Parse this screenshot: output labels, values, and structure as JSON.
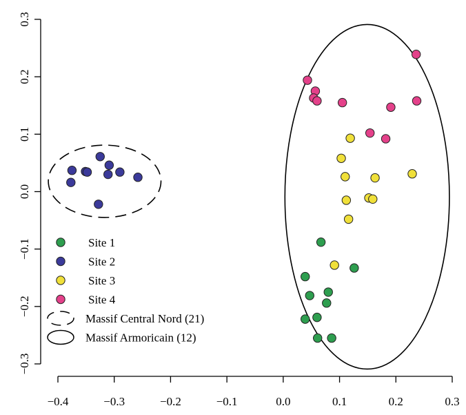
{
  "chart_data": {
    "type": "scatter",
    "title": "",
    "xlabel": "",
    "ylabel": "",
    "xlim": [
      -0.4,
      0.3
    ],
    "ylim": [
      -0.3,
      0.3
    ],
    "x_ticks": [
      -0.4,
      -0.3,
      -0.2,
      -0.1,
      0.0,
      0.1,
      0.2,
      0.3
    ],
    "x_tick_labels": [
      "−0.4",
      "−0.3",
      "−0.2",
      "−0.1",
      "0.0",
      "0.1",
      "0.2",
      "0.3"
    ],
    "y_ticks": [
      -0.3,
      -0.2,
      -0.1,
      0.0,
      0.1,
      0.2,
      0.3
    ],
    "y_tick_labels": [
      "−0.3",
      "−0.2",
      "−0.1",
      "0.0",
      "0.1",
      "0.2",
      "0.3"
    ],
    "grid": false,
    "legend_position": "bottom-left",
    "series": [
      {
        "name": "Site 1",
        "color": "#2e9e4f",
        "points": [
          [
            0.067,
            -0.088
          ],
          [
            0.126,
            -0.133
          ],
          [
            0.039,
            -0.148
          ],
          [
            0.047,
            -0.181
          ],
          [
            0.08,
            -0.175
          ],
          [
            0.077,
            -0.194
          ],
          [
            0.039,
            -0.222
          ],
          [
            0.06,
            -0.219
          ],
          [
            0.061,
            -0.255
          ],
          [
            0.086,
            -0.255
          ]
        ]
      },
      {
        "name": "Site 2",
        "color": "#3b3a9a",
        "points": [
          [
            -0.325,
            0.061
          ],
          [
            -0.309,
            0.046
          ],
          [
            -0.375,
            0.037
          ],
          [
            -0.351,
            0.035
          ],
          [
            -0.348,
            0.034
          ],
          [
            -0.29,
            0.034
          ],
          [
            -0.311,
            0.03
          ],
          [
            -0.258,
            0.025
          ],
          [
            -0.377,
            0.016
          ],
          [
            -0.328,
            -0.022
          ]
        ]
      },
      {
        "name": "Site 3",
        "color": "#f0e03a",
        "points": [
          [
            0.119,
            0.093
          ],
          [
            0.103,
            0.058
          ],
          [
            0.229,
            0.031
          ],
          [
            0.11,
            0.026
          ],
          [
            0.163,
            0.024
          ],
          [
            0.152,
            -0.011
          ],
          [
            0.159,
            -0.013
          ],
          [
            0.112,
            -0.015
          ],
          [
            0.116,
            -0.048
          ],
          [
            0.091,
            -0.128
          ]
        ]
      },
      {
        "name": "Site 4",
        "color": "#e4418a",
        "points": [
          [
            0.236,
            0.239
          ],
          [
            0.043,
            0.194
          ],
          [
            0.057,
            0.175
          ],
          [
            0.054,
            0.163
          ],
          [
            0.06,
            0.158
          ],
          [
            0.237,
            0.158
          ],
          [
            0.105,
            0.155
          ],
          [
            0.191,
            0.147
          ],
          [
            0.154,
            0.102
          ],
          [
            0.182,
            0.092
          ]
        ]
      }
    ],
    "ellipses": [
      {
        "name": "Massif Central Nord (21)",
        "style": "dashed",
        "center": [
          -0.317,
          0.018
        ],
        "radius_x": 0.1,
        "radius_y": 0.063
      },
      {
        "name": "Massif Armoricain (12)",
        "style": "solid",
        "center": [
          0.149,
          -0.009
        ],
        "radius_x": 0.146,
        "radius_y": 0.3
      }
    ]
  }
}
